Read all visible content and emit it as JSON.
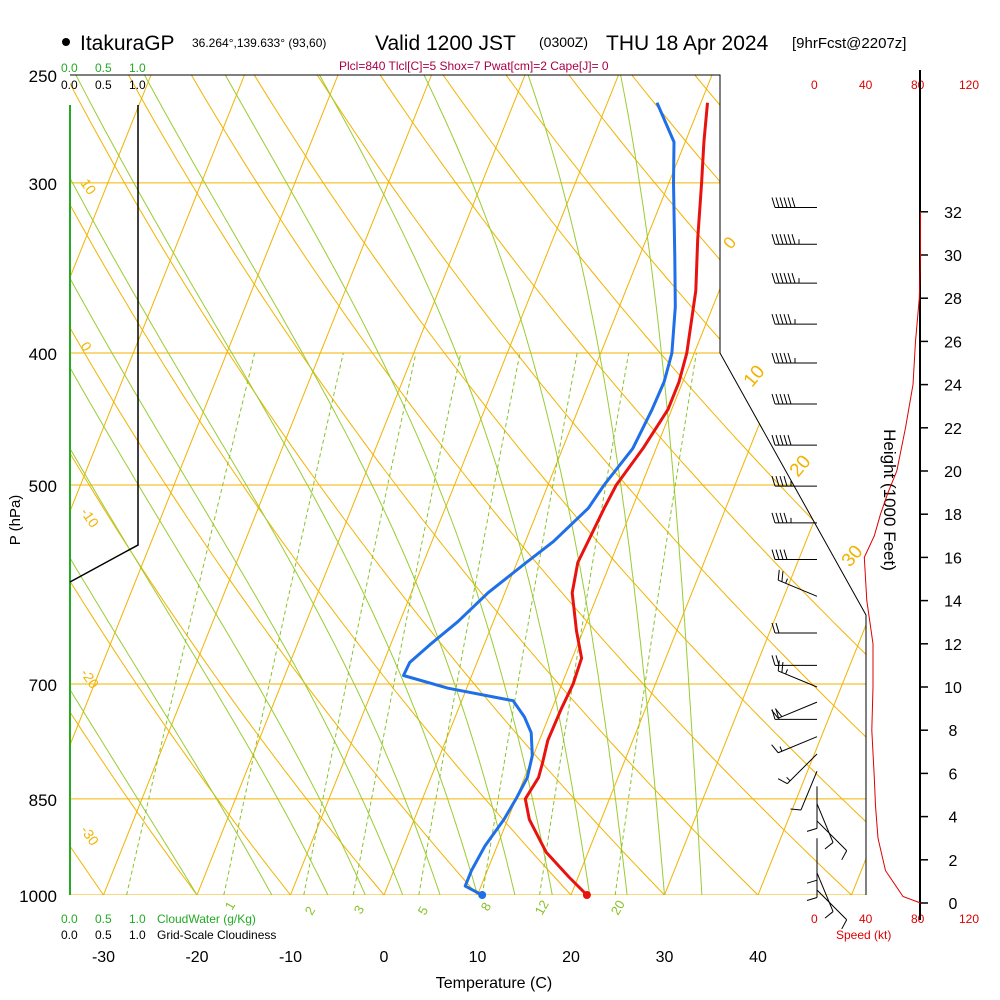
{
  "header": {
    "station": "ItakuraGP",
    "coords": "36.264°,139.633° (93,60)",
    "valid": "Valid 1200 JST",
    "zulu": "(0300Z)",
    "date": "THU 18 Apr 2024",
    "forecast": "[9hrFcst@2207z]",
    "indices": "Plcl=840 Tlcl[C]=5 Shox=7 Pwat[cm]=2 Cape[J]= 0"
  },
  "colors": {
    "temperature": "#e8120f",
    "dewpoint": "#1e6fe8",
    "isotherm": "#f2b300",
    "isobar": "#f2b300",
    "dry_adiabat": "#f2b300",
    "moist_adiabat": "#99cc33",
    "mixing_ratio": "#88c22a",
    "cloudwater": "#22aa22",
    "speed": "#dd0000",
    "indices": "#aa0044"
  },
  "labels": {
    "y_axis": "P (hPa)",
    "x_axis": "Temperature (C)",
    "height_axis": "Height (1000 Feet)",
    "speed_axis": "Speed (kt)",
    "cloudwater_legend": "CloudWater (g/Kg)",
    "cloudiness_legend": "Grid-Scale Cloudiness"
  },
  "scales": {
    "cloudwater_ticks": [
      "0.0",
      "0.5",
      "1.0"
    ],
    "cloudiness_ticks": [
      "0.0",
      "0.5",
      "1.0"
    ],
    "speed_ticks": [
      "0",
      "40",
      "80",
      "120"
    ]
  },
  "chart_data": {
    "type": "line",
    "title": "ItakuraGP Valid 1200 JST (0300Z) THU 18 Apr 2024 [9hrFcst@2207z]",
    "xlabel": "Temperature (C)",
    "ylabel": "P (hPa)",
    "pressure_ticks": [
      250,
      300,
      400,
      500,
      700,
      850,
      1000
    ],
    "temperature_ticks": [
      -30,
      -20,
      -10,
      0,
      10,
      20,
      30,
      40
    ],
    "height_ticks": [
      0,
      2,
      4,
      6,
      8,
      10,
      12,
      14,
      16,
      18,
      20,
      22,
      24,
      26,
      28,
      30,
      32
    ],
    "dry_adiabat_labels": [
      "10",
      "0",
      "-10",
      "-20",
      "-30"
    ],
    "moist_adiabat_labels": [
      "0",
      "10",
      "20",
      "30"
    ],
    "mixing_ratio_labels": [
      "1",
      "2",
      "3",
      "5",
      "8",
      "12",
      "20"
    ],
    "series": [
      {
        "name": "Temperature",
        "points": [
          [
            1000,
            21.7
          ],
          [
            970,
            19.0
          ],
          [
            930,
            15.5
          ],
          [
            880,
            12.3
          ],
          [
            850,
            11.0
          ],
          [
            820,
            11.5
          ],
          [
            800,
            11.3
          ],
          [
            770,
            10.9
          ],
          [
            730,
            11.0
          ],
          [
            700,
            11.2
          ],
          [
            670,
            11.0
          ],
          [
            640,
            9.3
          ],
          [
            600,
            7.2
          ],
          [
            570,
            6.5
          ],
          [
            550,
            6.7
          ],
          [
            520,
            7.0
          ],
          [
            500,
            7.3
          ],
          [
            470,
            8.6
          ],
          [
            440,
            9.6
          ],
          [
            420,
            9.6
          ],
          [
            400,
            9.2
          ],
          [
            360,
            7.5
          ],
          [
            330,
            5.5
          ],
          [
            300,
            3.5
          ],
          [
            280,
            2.0
          ],
          [
            262,
            0.7
          ]
        ]
      },
      {
        "name": "Dewpoint",
        "points": [
          [
            1000,
            10.5
          ],
          [
            985,
            8.3
          ],
          [
            960,
            8.3
          ],
          [
            920,
            8.7
          ],
          [
            880,
            9.6
          ],
          [
            850,
            10.0
          ],
          [
            820,
            10.3
          ],
          [
            790,
            9.9
          ],
          [
            760,
            8.8
          ],
          [
            740,
            7.4
          ],
          [
            720,
            5.5
          ],
          [
            705,
            -2.0
          ],
          [
            690,
            -7.3
          ],
          [
            675,
            -7.2
          ],
          [
            655,
            -5.8
          ],
          [
            630,
            -3.8
          ],
          [
            600,
            -1.8
          ],
          [
            570,
            1.0
          ],
          [
            550,
            3.0
          ],
          [
            520,
            5.3
          ],
          [
            500,
            6.0
          ],
          [
            470,
            7.5
          ],
          [
            440,
            7.9
          ],
          [
            420,
            8.0
          ],
          [
            400,
            7.6
          ],
          [
            370,
            6.0
          ],
          [
            340,
            3.8
          ],
          [
            300,
            0.5
          ],
          [
            280,
            -1.2
          ],
          [
            262,
            -4.7
          ]
        ]
      }
    ],
    "height_profile_kft": [
      [
        0,
        82
      ],
      [
        0.3,
        68
      ],
      [
        1.5,
        54
      ],
      [
        3,
        48
      ],
      [
        4.5,
        46
      ],
      [
        5.8,
        45
      ],
      [
        8,
        43
      ],
      [
        10,
        44
      ],
      [
        12,
        44
      ],
      [
        14,
        39
      ],
      [
        16,
        37
      ],
      [
        17,
        45
      ],
      [
        18,
        50
      ],
      [
        19,
        56
      ],
      [
        20,
        63
      ],
      [
        22,
        70
      ],
      [
        24,
        76
      ],
      [
        26,
        78
      ],
      [
        28,
        81
      ],
      [
        30,
        82
      ],
      [
        32,
        82
      ]
    ],
    "wind_barbs_kft": [
      [
        32.2,
        "W",
        60
      ],
      [
        30.5,
        "W",
        65
      ],
      [
        28.7,
        "W",
        65
      ],
      [
        26.8,
        "W",
        55
      ],
      [
        25.0,
        "W",
        55
      ],
      [
        23.1,
        "W",
        50
      ],
      [
        21.2,
        "W",
        50
      ],
      [
        19.3,
        "W",
        45
      ],
      [
        17.6,
        "W",
        45
      ],
      [
        15.9,
        "W",
        40
      ],
      [
        14.2,
        "WNW",
        25
      ],
      [
        12.5,
        "W",
        20
      ],
      [
        11.0,
        "W",
        20
      ],
      [
        10.0,
        "WNW",
        25
      ],
      [
        9.3,
        "WSW",
        20
      ],
      [
        8.5,
        "W",
        20
      ],
      [
        7.7,
        "WSW",
        15
      ],
      [
        6.9,
        "SW",
        15
      ],
      [
        6.1,
        "SSW",
        10
      ],
      [
        5.4,
        "S",
        10
      ],
      [
        4.6,
        "SSE",
        10
      ],
      [
        3.8,
        "SE",
        10
      ],
      [
        3.0,
        "S",
        10
      ],
      [
        2.2,
        "S",
        10
      ],
      [
        1.4,
        "SSE",
        10
      ],
      [
        0.6,
        "SE",
        10
      ]
    ]
  }
}
